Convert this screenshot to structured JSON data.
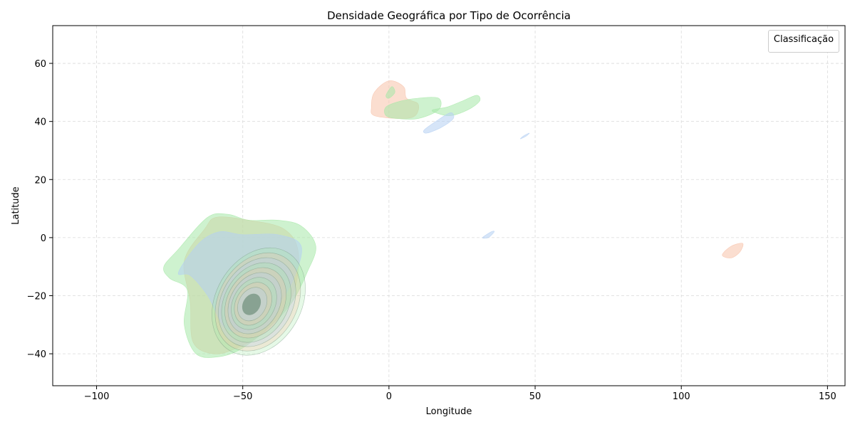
{
  "chart_data": {
    "type": "kde_density",
    "title": "Densidade Geográfica por Tipo de Ocorrência",
    "xlabel": "Longitude",
    "ylabel": "Latitude",
    "xlim": [
      -115,
      156
    ],
    "ylim": [
      -51,
      73
    ],
    "x_ticks": [
      -100,
      -50,
      0,
      50,
      100,
      150
    ],
    "y_ticks": [
      -40,
      -20,
      0,
      20,
      40,
      60
    ],
    "x_tick_labels": [
      "−100",
      "−50",
      "0",
      "50",
      "100",
      "150"
    ],
    "y_tick_labels": [
      "−40",
      "−20",
      "0",
      "20",
      "40",
      "60"
    ],
    "grid": true,
    "legend": {
      "title": "Classificação",
      "placement": "top-right",
      "entries": []
    },
    "colors": {
      "salmon": "#f7c2aa",
      "green": "#a6e8a8",
      "blue": "#b4cff3",
      "core": "#6e8f7a"
    },
    "series": [
      {
        "color": "salmon",
        "regions": [
          {
            "points": [
              [
                -59,
                7
              ],
              [
                -48,
                6
              ],
              [
                -36,
                3
              ],
              [
                -31,
                -5
              ],
              [
                -33,
                -20
              ],
              [
                -42,
                -32
              ],
              [
                -52,
                -38
              ],
              [
                -60,
                -40
              ],
              [
                -67,
                -36
              ],
              [
                -68,
                -22
              ],
              [
                -70,
                -8
              ],
              [
                -63,
                3
              ]
            ]
          },
          {
            "points": [
              [
                -6,
                45
              ],
              [
                -5,
                50
              ],
              [
                0,
                54
              ],
              [
                5,
                52
              ],
              [
                6,
                48
              ],
              [
                10,
                46
              ],
              [
                9,
                42
              ],
              [
                4,
                41
              ],
              [
                -5,
                42
              ]
            ]
          },
          {
            "points": [
              [
                114,
                -6
              ],
              [
                117,
                -3
              ],
              [
                121,
                -2
              ],
              [
                120,
                -5
              ],
              [
                117,
                -7
              ]
            ]
          }
        ]
      },
      {
        "color": "green",
        "regions": [
          {
            "points": [
              [
                -62,
                7
              ],
              [
                -55,
                8
              ],
              [
                -48,
                6
              ],
              [
                -38,
                6
              ],
              [
                -30,
                4
              ],
              [
                -25,
                -3
              ],
              [
                -28,
                -12
              ],
              [
                -33,
                -22
              ],
              [
                -40,
                -30
              ],
              [
                -50,
                -38
              ],
              [
                -58,
                -41
              ],
              [
                -66,
                -40
              ],
              [
                -70,
                -30
              ],
              [
                -69,
                -18
              ],
              [
                -75,
                -14
              ],
              [
                -77,
                -10
              ],
              [
                -72,
                -4
              ]
            ]
          },
          {
            "points": [
              [
                -1,
                45
              ],
              [
                4,
                47
              ],
              [
                10,
                48
              ],
              [
                17,
                48
              ],
              [
                17,
                44
              ],
              [
                10,
                41
              ],
              [
                3,
                41
              ],
              [
                -1,
                42
              ]
            ]
          },
          {
            "points": [
              [
                15,
                44
              ],
              [
                20,
                45
              ],
              [
                25,
                47
              ],
              [
                30,
                49
              ],
              [
                31,
                47
              ],
              [
                27,
                44
              ],
              [
                21,
                42
              ],
              [
                16,
                43
              ]
            ]
          },
          {
            "points": [
              [
                -1,
                49
              ],
              [
                1,
                52
              ],
              [
                2,
                50
              ],
              [
                0,
                48
              ]
            ]
          }
        ]
      },
      {
        "color": "blue",
        "regions": [
          {
            "points": [
              [
                -72,
                -12
              ],
              [
                -65,
                -2
              ],
              [
                -58,
                2
              ],
              [
                -50,
                1
              ],
              [
                -38,
                1
              ],
              [
                -30,
                -3
              ],
              [
                -33,
                -15
              ],
              [
                -40,
                -26
              ],
              [
                -48,
                -32
              ],
              [
                -56,
                -31
              ],
              [
                -62,
                -20
              ],
              [
                -68,
                -13
              ]
            ]
          },
          {
            "points": [
              [
                12,
                37
              ],
              [
                16,
                40
              ],
              [
                21,
                43
              ],
              [
                22,
                41
              ],
              [
                18,
                38
              ],
              [
                13,
                36
              ]
            ]
          },
          {
            "points": [
              [
                45,
                34
              ],
              [
                47,
                35
              ],
              [
                48,
                36
              ],
              [
                46,
                35
              ]
            ]
          },
          {
            "points": [
              [
                32,
                0
              ],
              [
                35,
                2
              ],
              [
                36,
                2
              ],
              [
                34,
                0
              ]
            ]
          }
        ]
      }
    ],
    "hotspot": {
      "center": [
        -47,
        -23
      ],
      "levels": 9
    }
  }
}
